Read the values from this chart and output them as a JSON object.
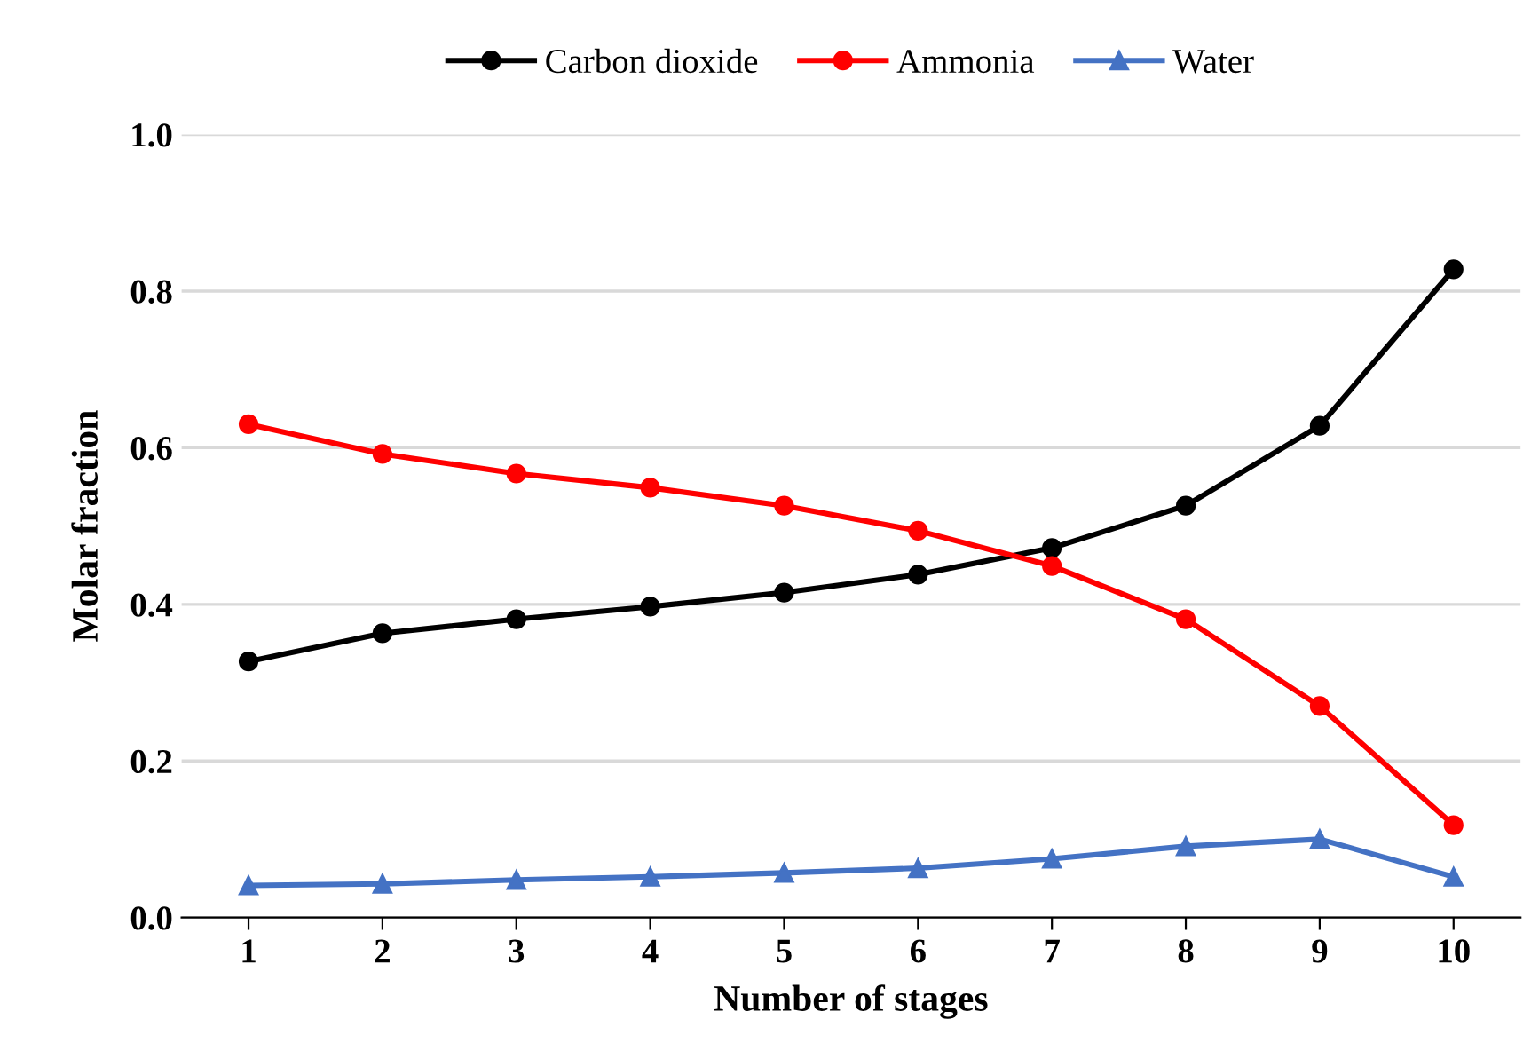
{
  "chart_data": {
    "type": "line",
    "xlabel": "Number of stages",
    "ylabel": "Molar fraction",
    "categories": [
      "1",
      "2",
      "3",
      "4",
      "5",
      "6",
      "7",
      "8",
      "9",
      "10"
    ],
    "series": [
      {
        "name": "Carbon dioxide",
        "color": "#000000",
        "marker": "circle",
        "values": [
          0.327,
          0.363,
          0.381,
          0.397,
          0.415,
          0.438,
          0.472,
          0.526,
          0.628,
          0.828
        ]
      },
      {
        "name": "Ammonia",
        "color": "#ff0000",
        "marker": "circle",
        "values": [
          0.63,
          0.592,
          0.567,
          0.549,
          0.526,
          0.494,
          0.449,
          0.381,
          0.27,
          0.118
        ]
      },
      {
        "name": "Water",
        "color": "#4472c4",
        "marker": "triangle",
        "values": [
          0.041,
          0.043,
          0.048,
          0.052,
          0.057,
          0.063,
          0.075,
          0.091,
          0.1,
          0.052
        ]
      }
    ],
    "ylim": [
      0,
      1
    ],
    "yticks": [
      {
        "value": 0,
        "label": "0.0"
      },
      {
        "value": 0.2,
        "label": "0.2"
      },
      {
        "value": 0.4,
        "label": "0.4"
      },
      {
        "value": 0.6,
        "label": "0.6"
      },
      {
        "value": 0.8,
        "label": "0.8"
      },
      {
        "value": 1,
        "label": "1.0"
      }
    ],
    "grid": "y",
    "legend": "top",
    "line_style": "solid"
  }
}
